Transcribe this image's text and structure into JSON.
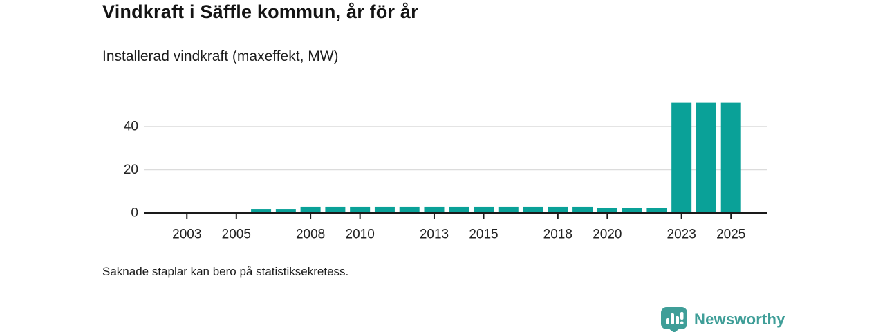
{
  "header": {
    "title": "Vindkraft i Säffle kommun, år för år",
    "subtitle": "Installerad vindkraft (maxeffekt, MW)"
  },
  "footer": {
    "note": "Saknade staplar kan bero på statistiksekretess.",
    "brand": "Newsworthy"
  },
  "colors": {
    "bar": "#0aa198",
    "brand": "#3f9e98",
    "axis": "#1a1a1a",
    "grid": "#dcdcdc",
    "label": "#222222"
  },
  "chart_data": {
    "type": "bar",
    "title": "Vindkraft i Säffle kommun, år för år",
    "subtitle": "Installerad vindkraft (maxeffekt, MW)",
    "ylabel": "MW",
    "x": [
      2002,
      2003,
      2004,
      2005,
      2006,
      2007,
      2008,
      2009,
      2010,
      2011,
      2012,
      2013,
      2014,
      2015,
      2016,
      2017,
      2018,
      2019,
      2020,
      2021,
      2022,
      2023,
      2024,
      2025
    ],
    "values": [
      null,
      null,
      null,
      null,
      1.9,
      1.9,
      2.9,
      2.9,
      2.9,
      2.9,
      2.9,
      2.9,
      2.9,
      2.9,
      2.9,
      2.9,
      2.9,
      2.9,
      2.5,
      2.5,
      2.5,
      51,
      51,
      51
    ],
    "ylim": [
      0,
      52
    ],
    "yticks": [
      0,
      20,
      40
    ],
    "xticks": [
      2003,
      2005,
      2008,
      2010,
      2013,
      2015,
      2018,
      2020,
      2023,
      2025
    ],
    "grid": "horizontal",
    "legend": "none",
    "note": "Saknade staplar kan bero på statistiksekretess."
  }
}
